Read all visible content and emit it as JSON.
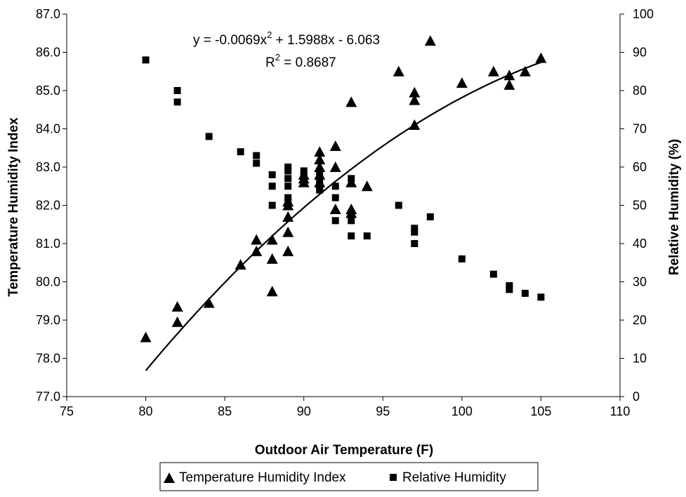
{
  "chart_data": {
    "type": "scatter",
    "xlabel": "Outdoor Air Temperature (F)",
    "ylabel_left": "Temperature Humidity Index",
    "ylabel_right": "Relative Humidity (%)",
    "xlim": [
      75,
      110
    ],
    "ylim_left": [
      77.0,
      87.0
    ],
    "ylim_right": [
      0,
      100
    ],
    "x_ticks": [
      "75",
      "80",
      "85",
      "90",
      "95",
      "100",
      "105",
      "110"
    ],
    "y_left_ticks": [
      "77.0",
      "78.0",
      "79.0",
      "80.0",
      "81.0",
      "82.0",
      "83.0",
      "84.0",
      "85.0",
      "86.0",
      "87.0"
    ],
    "y_right_ticks": [
      "0",
      "10",
      "20",
      "30",
      "40",
      "50",
      "60",
      "70",
      "80",
      "90",
      "100"
    ],
    "grid": false,
    "legend_position": "bottom",
    "trendline": {
      "series": "Temperature Humidity Index",
      "equation_prefix": "y = -0.0069x",
      "equation_suffix": " + 1.5988x - 6.063",
      "r2_prefix": "R",
      "r2_suffix": " = 0.8687",
      "superscript": "2",
      "a": -0.0069,
      "b": 1.5988,
      "c": -6.063,
      "x_range": [
        80,
        105
      ]
    },
    "series": [
      {
        "name": "Temperature Humidity Index",
        "marker": "triangle",
        "axis": "left",
        "points": [
          [
            80,
            78.55
          ],
          [
            82,
            78.95
          ],
          [
            82,
            79.35
          ],
          [
            84,
            79.45
          ],
          [
            86,
            80.45
          ],
          [
            87,
            80.8
          ],
          [
            87,
            81.1
          ],
          [
            88,
            79.75
          ],
          [
            88,
            80.6
          ],
          [
            88,
            81.1
          ],
          [
            89,
            80.8
          ],
          [
            89,
            81.3
          ],
          [
            89,
            81.7
          ],
          [
            89,
            82.0
          ],
          [
            89,
            82.1
          ],
          [
            90,
            82.6
          ],
          [
            90,
            82.7
          ],
          [
            90,
            82.8
          ],
          [
            91,
            82.6
          ],
          [
            91,
            82.8
          ],
          [
            91,
            83.0
          ],
          [
            91,
            83.2
          ],
          [
            91,
            83.4
          ],
          [
            92,
            81.9
          ],
          [
            92,
            83.0
          ],
          [
            92,
            83.55
          ],
          [
            93,
            81.8
          ],
          [
            93,
            81.9
          ],
          [
            93,
            82.6
          ],
          [
            93,
            84.7
          ],
          [
            94,
            82.5
          ],
          [
            96,
            85.5
          ],
          [
            97,
            84.1
          ],
          [
            97,
            84.75
          ],
          [
            97,
            84.95
          ],
          [
            98,
            86.3
          ],
          [
            100,
            85.2
          ],
          [
            102,
            85.5
          ],
          [
            103,
            85.15
          ],
          [
            103,
            85.4
          ],
          [
            104,
            85.5
          ],
          [
            105,
            85.85
          ]
        ]
      },
      {
        "name": "Relative Humidity",
        "marker": "square",
        "axis": "right",
        "points": [
          [
            80,
            88
          ],
          [
            82,
            80
          ],
          [
            82,
            77
          ],
          [
            84,
            68
          ],
          [
            86,
            64
          ],
          [
            87,
            63
          ],
          [
            87,
            61
          ],
          [
            88,
            58
          ],
          [
            88,
            55
          ],
          [
            88,
            50
          ],
          [
            89,
            60
          ],
          [
            89,
            59
          ],
          [
            89,
            57
          ],
          [
            89,
            55
          ],
          [
            89,
            52
          ],
          [
            89,
            51
          ],
          [
            90,
            59
          ],
          [
            90,
            58
          ],
          [
            90,
            57
          ],
          [
            90,
            56
          ],
          [
            91,
            58
          ],
          [
            91,
            56
          ],
          [
            91,
            55
          ],
          [
            91,
            54
          ],
          [
            92,
            55
          ],
          [
            92,
            52
          ],
          [
            92,
            46
          ],
          [
            93,
            57
          ],
          [
            93,
            46
          ],
          [
            93,
            42
          ],
          [
            94,
            42
          ],
          [
            96,
            50
          ],
          [
            97,
            44
          ],
          [
            97,
            43
          ],
          [
            97,
            40
          ],
          [
            98,
            47
          ],
          [
            100,
            36
          ],
          [
            102,
            32
          ],
          [
            103,
            29
          ],
          [
            103,
            28
          ],
          [
            104,
            27
          ],
          [
            105,
            26
          ]
        ]
      }
    ]
  }
}
